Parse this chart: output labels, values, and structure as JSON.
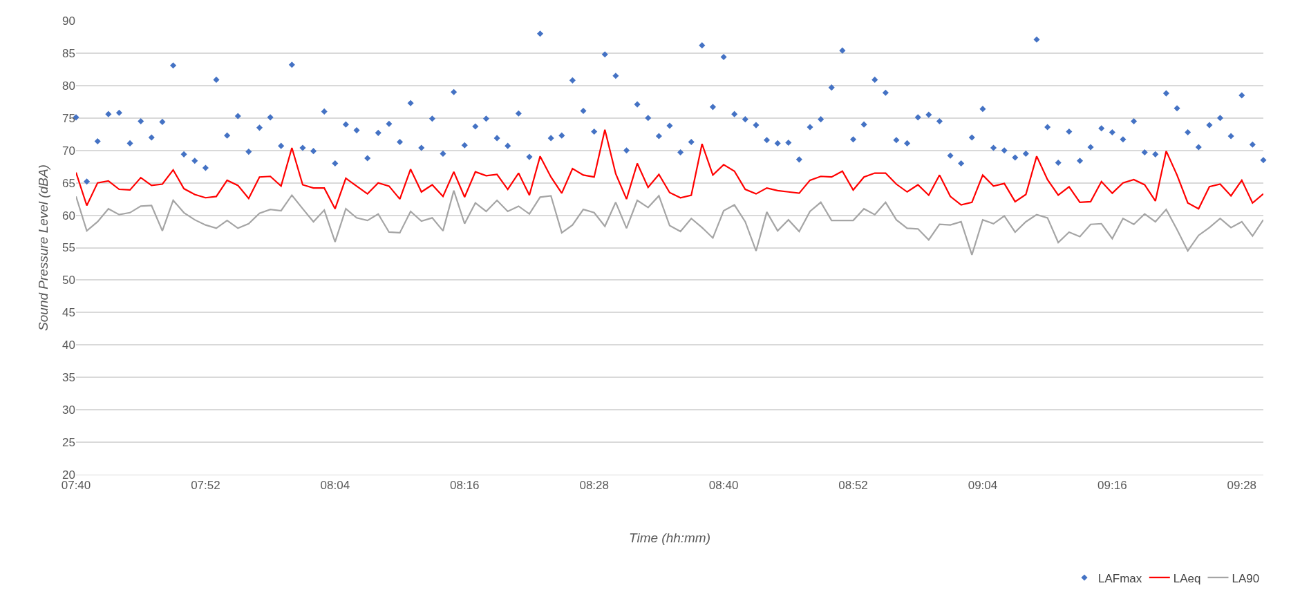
{
  "chart_data": {
    "type": "line",
    "xlabel": "Time (hh:mm)",
    "ylabel": "Sound Pressure Level (dBA)",
    "x": [
      7.6667,
      7.6833,
      7.7,
      7.7167,
      7.7333,
      7.75,
      7.7667,
      7.7833,
      7.8,
      7.8167,
      7.8333,
      7.85,
      7.8667,
      7.8833,
      7.9,
      7.9167,
      7.9333,
      7.95,
      7.9667,
      7.9833,
      8,
      8.0167,
      8.0333,
      8.05,
      8.0667,
      8.0833,
      8.1,
      8.1167,
      8.1333,
      8.15,
      8.1667,
      8.1833,
      8.2,
      8.2167,
      8.2333,
      8.25,
      8.2667,
      8.2833,
      8.3,
      8.3167,
      8.3333,
      8.35,
      8.3667,
      8.3833,
      8.4,
      8.4167,
      8.4333,
      8.45,
      8.4667,
      8.4833,
      8.5,
      8.5167,
      8.5333,
      8.55,
      8.5667,
      8.5833,
      8.6,
      8.6167,
      8.6333,
      8.65,
      8.6667,
      8.6833,
      8.7,
      8.7167,
      8.7333,
      8.75,
      8.7667,
      8.7833,
      8.8,
      8.8167,
      8.8333,
      8.85,
      8.8667,
      8.8833,
      8.9,
      8.9167,
      8.9333,
      8.95,
      8.9667,
      8.9833,
      9,
      9.0167,
      9.0333,
      9.05,
      9.0667,
      9.0833,
      9.1,
      9.1167,
      9.1333,
      9.15,
      9.1667,
      9.1833,
      9.2,
      9.2167,
      9.2333,
      9.25,
      9.2667,
      9.2833,
      9.3,
      9.3167,
      9.3333,
      9.35,
      9.3667,
      9.3833,
      9.4,
      9.4167,
      9.4333,
      9.45,
      9.4667,
      9.4833,
      9.5
    ],
    "series": [
      {
        "name": "LAFmax",
        "type": "scatter",
        "marker": "diamond",
        "color": "#4472c4",
        "values": [
          75.1,
          65.2,
          71.4,
          75.6,
          75.8,
          71.1,
          74.5,
          72.0,
          74.4,
          83.1,
          69.4,
          68.4,
          67.3,
          80.9,
          72.3,
          75.3,
          69.8,
          73.5,
          75.1,
          70.7,
          83.2,
          70.4,
          69.9,
          76.0,
          68.0,
          74.0,
          73.1,
          68.8,
          72.7,
          74.1,
          71.3,
          77.3,
          70.4,
          74.9,
          69.5,
          79.0,
          70.8,
          73.7,
          74.9,
          71.9,
          70.7,
          75.7,
          69.0,
          88.0,
          71.9,
          72.3,
          80.8,
          76.1,
          72.9,
          84.8,
          81.5,
          70.0,
          77.1,
          75.0,
          72.2,
          73.8,
          69.7,
          71.3,
          86.2,
          76.7,
          84.4,
          75.6,
          74.8,
          73.9,
          71.6,
          71.1,
          71.2,
          68.6,
          73.6,
          74.8,
          79.7,
          85.4,
          71.7,
          74.0,
          80.9,
          78.9,
          71.6,
          71.1,
          75.1,
          75.5,
          74.5,
          69.2,
          68.0,
          72.0,
          76.4,
          70.4,
          70.0,
          68.9,
          69.5,
          87.1,
          73.6,
          68.1,
          72.9,
          68.4,
          70.5,
          73.4,
          72.8,
          71.7,
          74.5,
          69.7,
          69.4,
          78.8,
          76.5,
          72.8,
          70.5,
          73.9,
          75.0,
          72.2,
          78.5,
          70.9,
          68.5
        ]
      },
      {
        "name": "LAeq",
        "color": "#ff0000",
        "values": [
          66.6,
          61.5,
          65.0,
          65.3,
          64.0,
          63.9,
          65.8,
          64.6,
          64.8,
          67.0,
          64.1,
          63.2,
          62.7,
          62.9,
          65.4,
          64.6,
          62.6,
          65.9,
          66.0,
          64.5,
          70.4,
          64.7,
          64.2,
          64.2,
          61.0,
          65.7,
          64.5,
          63.3,
          65.0,
          64.5,
          62.5,
          67.1,
          63.6,
          64.7,
          62.9,
          66.7,
          62.8,
          66.7,
          66.1,
          66.3,
          64.0,
          66.5,
          63.1,
          69.1,
          65.9,
          63.4,
          67.2,
          66.2,
          65.9,
          73.2,
          66.4,
          62.5,
          68.0,
          64.3,
          66.3,
          63.5,
          62.7,
          63.1,
          71.0,
          66.2,
          67.8,
          66.8,
          64.0,
          63.3,
          64.2,
          63.8,
          63.6,
          63.4,
          65.4,
          66.0,
          65.9,
          66.8,
          63.9,
          65.9,
          66.5,
          66.5,
          64.8,
          63.6,
          64.7,
          63.1,
          66.2,
          62.9,
          61.6,
          62.0,
          66.2,
          64.5,
          64.9,
          62.1,
          63.2,
          69.1,
          65.5,
          63.1,
          64.4,
          62.0,
          62.1,
          65.2,
          63.4,
          65.0,
          65.5,
          64.7,
          62.2,
          69.9,
          66.2,
          61.9,
          61.0,
          64.4,
          64.8,
          63.0,
          65.4,
          61.9,
          63.3
        ]
      },
      {
        "name": "LA90",
        "color": "#a5a5a5",
        "values": [
          62.9,
          57.6,
          59.0,
          61.0,
          60.1,
          60.4,
          61.4,
          61.5,
          57.6,
          62.3,
          60.4,
          59.3,
          58.5,
          58.0,
          59.2,
          58.0,
          58.7,
          60.3,
          60.9,
          60.7,
          63.1,
          61.0,
          59.0,
          60.8,
          55.9,
          61.0,
          59.6,
          59.2,
          60.2,
          57.4,
          57.3,
          60.6,
          59.1,
          59.6,
          57.6,
          63.8,
          58.7,
          61.9,
          60.6,
          62.3,
          60.6,
          61.4,
          60.2,
          62.8,
          63.0,
          57.3,
          58.5,
          60.9,
          60.4,
          58.3,
          62.0,
          58.0,
          62.3,
          61.2,
          63.0,
          58.4,
          57.5,
          59.5,
          58.1,
          56.5,
          60.7,
          61.6,
          59.0,
          54.5,
          60.5,
          57.6,
          59.3,
          57.5,
          60.6,
          62.0,
          59.2,
          59.2,
          59.2,
          61.0,
          60.1,
          62.0,
          59.3,
          58.0,
          57.9,
          56.2,
          58.6,
          58.5,
          59.0,
          53.9,
          59.3,
          58.7,
          59.9,
          57.4,
          59.0,
          60.1,
          59.6,
          55.8,
          57.4,
          56.7,
          58.6,
          58.7,
          56.4,
          59.5,
          58.6,
          60.2,
          59.0,
          60.9,
          57.8,
          54.5,
          56.9,
          58.1,
          59.5,
          58.1,
          59.0,
          56.8,
          59.3
        ]
      }
    ],
    "xlim": [
      7.6667,
      9.5
    ],
    "xticks": [
      {
        "value": 7.6667,
        "label": "07:40"
      },
      {
        "value": 7.8667,
        "label": "07:52"
      },
      {
        "value": 8.0667,
        "label": "08:04"
      },
      {
        "value": 8.2667,
        "label": "08:16"
      },
      {
        "value": 8.4667,
        "label": "08:28"
      },
      {
        "value": 8.6667,
        "label": "08:40"
      },
      {
        "value": 8.8667,
        "label": "08:52"
      },
      {
        "value": 9.0667,
        "label": "09:04"
      },
      {
        "value": 9.2667,
        "label": "09:16"
      },
      {
        "value": 9.4667,
        "label": "09:28"
      }
    ],
    "ylim": [
      20,
      90
    ],
    "yticks": [
      20,
      25,
      30,
      35,
      40,
      45,
      50,
      55,
      60,
      65,
      70,
      75,
      80,
      85,
      90
    ],
    "grid": "y",
    "legend": "bottom right"
  }
}
